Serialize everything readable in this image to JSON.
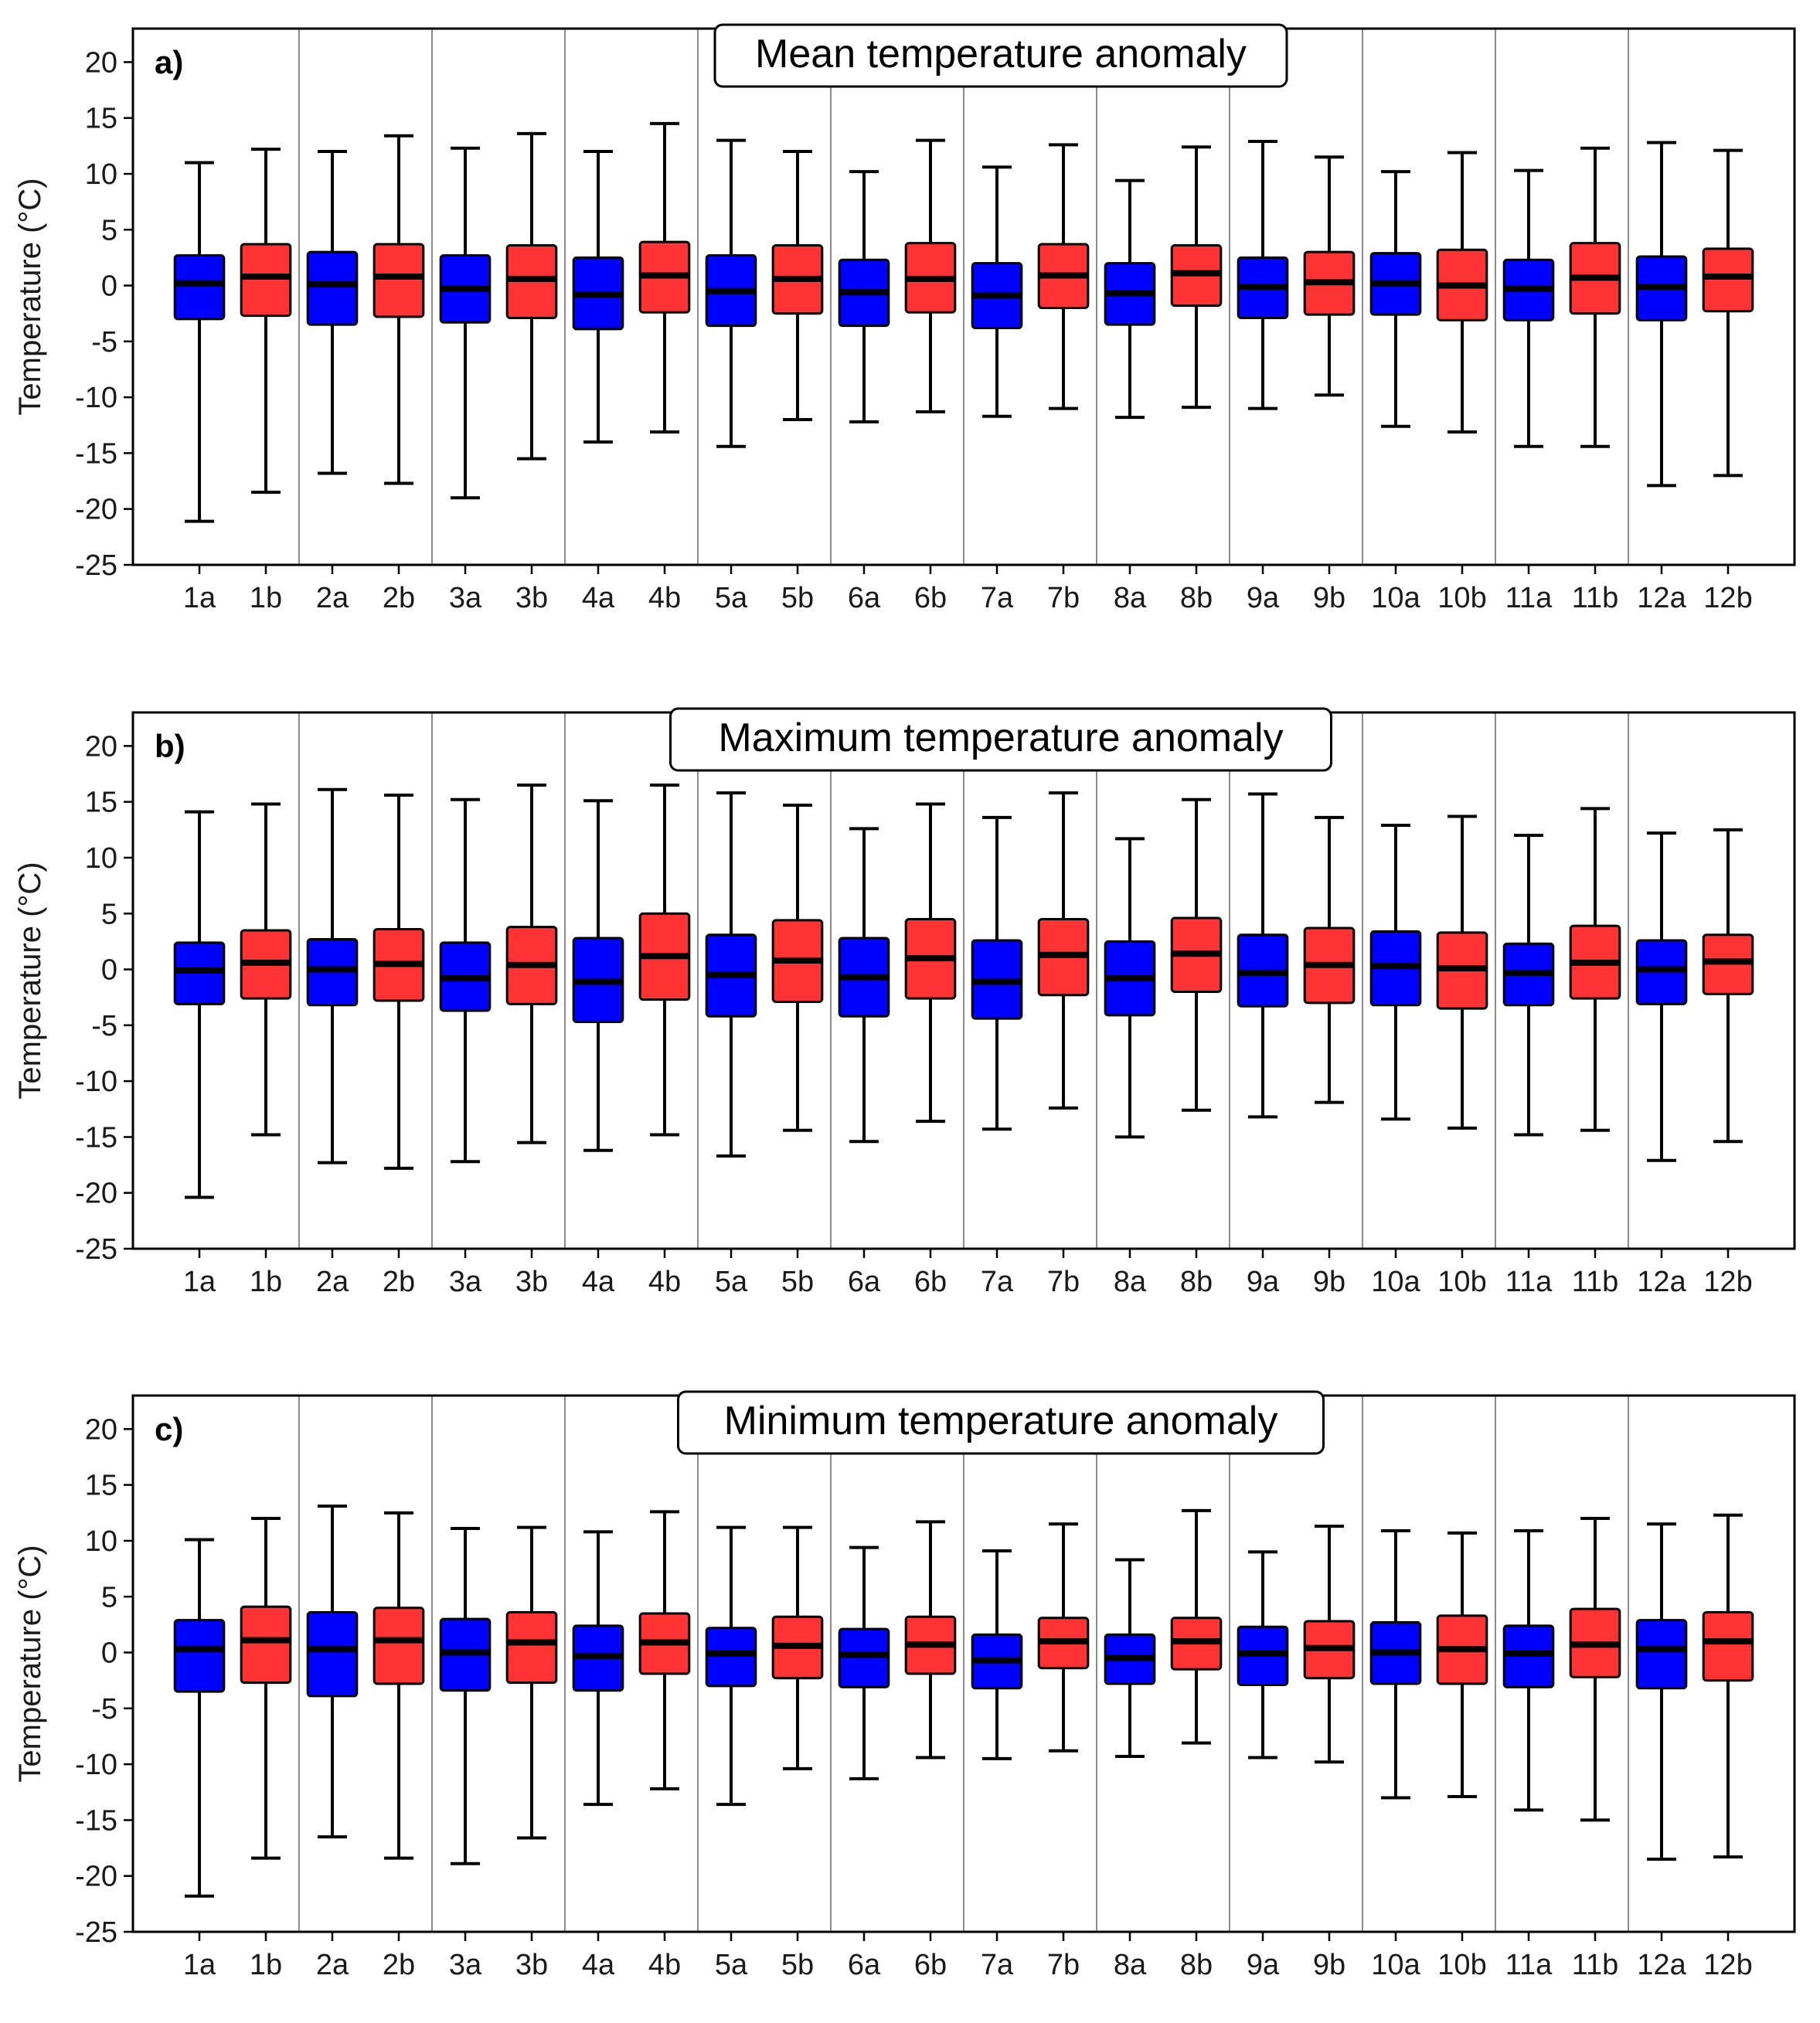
{
  "figure": {
    "y_label": "Temperature (°C)",
    "colors": {
      "a": "#0000ff",
      "b": "#ff3333",
      "stroke": "#000000",
      "separator": "#8c8c8c"
    }
  },
  "chart_data": [
    {
      "type": "boxplot",
      "panel_label": "a)",
      "title": "Mean temperature anomaly",
      "ylabel": "Temperature (°C)",
      "ylim": [
        -25,
        23
      ],
      "yticks": [
        20,
        15,
        10,
        5,
        0,
        -5,
        -10,
        -15,
        -20,
        -25
      ],
      "categories": [
        "1a",
        "1b",
        "2a",
        "2b",
        "3a",
        "3b",
        "4a",
        "4b",
        "5a",
        "5b",
        "6a",
        "6b",
        "7a",
        "7b",
        "8a",
        "8b",
        "9a",
        "9b",
        "10a",
        "10b",
        "11a",
        "11b",
        "12a",
        "12b"
      ],
      "boxes": [
        {
          "min": -21.1,
          "q1": -3.0,
          "median": 0.2,
          "q3": 2.7,
          "max": 11.0
        },
        {
          "min": -18.5,
          "q1": -2.7,
          "median": 0.8,
          "q3": 3.7,
          "max": 12.2
        },
        {
          "min": -16.8,
          "q1": -3.5,
          "median": 0.1,
          "q3": 3.0,
          "max": 12.0
        },
        {
          "min": -17.7,
          "q1": -2.8,
          "median": 0.8,
          "q3": 3.7,
          "max": 13.4
        },
        {
          "min": -19.0,
          "q1": -3.3,
          "median": -0.3,
          "q3": 2.7,
          "max": 12.3
        },
        {
          "min": -15.5,
          "q1": -2.9,
          "median": 0.6,
          "q3": 3.6,
          "max": 13.6
        },
        {
          "min": -14.0,
          "q1": -3.9,
          "median": -0.8,
          "q3": 2.5,
          "max": 12.0
        },
        {
          "min": -13.1,
          "q1": -2.4,
          "median": 0.9,
          "q3": 3.9,
          "max": 14.5
        },
        {
          "min": -14.4,
          "q1": -3.6,
          "median": -0.5,
          "q3": 2.7,
          "max": 13.0
        },
        {
          "min": -12.0,
          "q1": -2.5,
          "median": 0.6,
          "q3": 3.6,
          "max": 12.0
        },
        {
          "min": -12.2,
          "q1": -3.6,
          "median": -0.6,
          "q3": 2.3,
          "max": 10.2
        },
        {
          "min": -11.3,
          "q1": -2.4,
          "median": 0.6,
          "q3": 3.8,
          "max": 13.0
        },
        {
          "min": -11.7,
          "q1": -3.8,
          "median": -0.9,
          "q3": 2.0,
          "max": 10.6
        },
        {
          "min": -11.0,
          "q1": -2.0,
          "median": 0.9,
          "q3": 3.7,
          "max": 12.6
        },
        {
          "min": -11.8,
          "q1": -3.5,
          "median": -0.7,
          "q3": 2.0,
          "max": 9.4
        },
        {
          "min": -10.9,
          "q1": -1.8,
          "median": 1.1,
          "q3": 3.6,
          "max": 12.4
        },
        {
          "min": -11.0,
          "q1": -2.9,
          "median": -0.1,
          "q3": 2.5,
          "max": 12.9
        },
        {
          "min": -9.8,
          "q1": -2.6,
          "median": 0.3,
          "q3": 3.0,
          "max": 11.5
        },
        {
          "min": -12.6,
          "q1": -2.6,
          "median": 0.2,
          "q3": 2.9,
          "max": 10.2
        },
        {
          "min": -13.1,
          "q1": -3.1,
          "median": 0.0,
          "q3": 3.2,
          "max": 11.9
        },
        {
          "min": -14.4,
          "q1": -3.1,
          "median": -0.3,
          "q3": 2.3,
          "max": 10.3
        },
        {
          "min": -14.4,
          "q1": -2.5,
          "median": 0.7,
          "q3": 3.8,
          "max": 12.3
        },
        {
          "min": -17.9,
          "q1": -3.1,
          "median": -0.1,
          "q3": 2.6,
          "max": 12.8
        },
        {
          "min": -17.0,
          "q1": -2.3,
          "median": 0.8,
          "q3": 3.3,
          "max": 12.1
        }
      ]
    },
    {
      "type": "boxplot",
      "panel_label": "b)",
      "title": "Maximum temperature anomaly",
      "ylabel": "Temperature (°C)",
      "ylim": [
        -25,
        23
      ],
      "yticks": [
        20,
        15,
        10,
        5,
        0,
        -5,
        -10,
        -15,
        -20,
        -25
      ],
      "categories": [
        "1a",
        "1b",
        "2a",
        "2b",
        "3a",
        "3b",
        "4a",
        "4b",
        "5a",
        "5b",
        "6a",
        "6b",
        "7a",
        "7b",
        "8a",
        "8b",
        "9a",
        "9b",
        "10a",
        "10b",
        "11a",
        "11b",
        "12a",
        "12b"
      ],
      "boxes": [
        {
          "min": -20.4,
          "q1": -3.1,
          "median": -0.1,
          "q3": 2.4,
          "max": 14.1
        },
        {
          "min": -14.8,
          "q1": -2.6,
          "median": 0.6,
          "q3": 3.5,
          "max": 14.8
        },
        {
          "min": -17.3,
          "q1": -3.2,
          "median": 0.0,
          "q3": 2.7,
          "max": 16.1
        },
        {
          "min": -17.8,
          "q1": -2.8,
          "median": 0.5,
          "q3": 3.6,
          "max": 15.6
        },
        {
          "min": -17.2,
          "q1": -3.7,
          "median": -0.8,
          "q3": 2.4,
          "max": 15.2
        },
        {
          "min": -15.5,
          "q1": -3.1,
          "median": 0.4,
          "q3": 3.8,
          "max": 16.5
        },
        {
          "min": -16.2,
          "q1": -4.7,
          "median": -1.1,
          "q3": 2.8,
          "max": 15.1
        },
        {
          "min": -14.8,
          "q1": -2.7,
          "median": 1.2,
          "q3": 5.0,
          "max": 16.5
        },
        {
          "min": -16.7,
          "q1": -4.2,
          "median": -0.5,
          "q3": 3.1,
          "max": 15.8
        },
        {
          "min": -14.4,
          "q1": -2.9,
          "median": 0.8,
          "q3": 4.4,
          "max": 14.7
        },
        {
          "min": -15.4,
          "q1": -4.2,
          "median": -0.7,
          "q3": 2.8,
          "max": 12.6
        },
        {
          "min": -13.6,
          "q1": -2.6,
          "median": 1.0,
          "q3": 4.5,
          "max": 14.8
        },
        {
          "min": -14.3,
          "q1": -4.4,
          "median": -1.1,
          "q3": 2.6,
          "max": 13.6
        },
        {
          "min": -12.4,
          "q1": -2.3,
          "median": 1.3,
          "q3": 4.5,
          "max": 15.8
        },
        {
          "min": -15.0,
          "q1": -4.1,
          "median": -0.8,
          "q3": 2.5,
          "max": 11.7
        },
        {
          "min": -12.6,
          "q1": -2.0,
          "median": 1.4,
          "q3": 4.6,
          "max": 15.2
        },
        {
          "min": -13.2,
          "q1": -3.3,
          "median": -0.3,
          "q3": 3.1,
          "max": 15.7
        },
        {
          "min": -11.9,
          "q1": -3.0,
          "median": 0.4,
          "q3": 3.7,
          "max": 13.6
        },
        {
          "min": -13.4,
          "q1": -3.2,
          "median": 0.3,
          "q3": 3.4,
          "max": 12.9
        },
        {
          "min": -14.2,
          "q1": -3.5,
          "median": 0.1,
          "q3": 3.3,
          "max": 13.7
        },
        {
          "min": -14.8,
          "q1": -3.2,
          "median": -0.3,
          "q3": 2.3,
          "max": 12.0
        },
        {
          "min": -14.4,
          "q1": -2.6,
          "median": 0.6,
          "q3": 3.9,
          "max": 14.4
        },
        {
          "min": -17.1,
          "q1": -3.1,
          "median": 0.0,
          "q3": 2.6,
          "max": 12.2
        },
        {
          "min": -15.4,
          "q1": -2.2,
          "median": 0.7,
          "q3": 3.1,
          "max": 12.5
        }
      ]
    },
    {
      "type": "boxplot",
      "panel_label": "c)",
      "title": "Minimum temperature anomaly",
      "ylabel": "Temperature (°C)",
      "ylim": [
        -25,
        23
      ],
      "yticks": [
        20,
        15,
        10,
        5,
        0,
        -5,
        -10,
        -15,
        -20,
        -25
      ],
      "categories": [
        "1a",
        "1b",
        "2a",
        "2b",
        "3a",
        "3b",
        "4a",
        "4b",
        "5a",
        "5b",
        "6a",
        "6b",
        "7a",
        "7b",
        "8a",
        "8b",
        "9a",
        "9b",
        "10a",
        "10b",
        "11a",
        "11b",
        "12a",
        "12b"
      ],
      "boxes": [
        {
          "min": -21.8,
          "q1": -3.5,
          "median": 0.3,
          "q3": 2.9,
          "max": 10.1
        },
        {
          "min": -18.4,
          "q1": -2.7,
          "median": 1.1,
          "q3": 4.1,
          "max": 12.0
        },
        {
          "min": -16.5,
          "q1": -3.9,
          "median": 0.3,
          "q3": 3.6,
          "max": 13.1
        },
        {
          "min": -18.4,
          "q1": -2.8,
          "median": 1.1,
          "q3": 4.0,
          "max": 12.5
        },
        {
          "min": -18.9,
          "q1": -3.4,
          "median": 0.0,
          "q3": 3.0,
          "max": 11.1
        },
        {
          "min": -16.6,
          "q1": -2.7,
          "median": 0.9,
          "q3": 3.6,
          "max": 11.2
        },
        {
          "min": -13.6,
          "q1": -3.4,
          "median": -0.3,
          "q3": 2.4,
          "max": 10.8
        },
        {
          "min": -12.2,
          "q1": -1.9,
          "median": 0.9,
          "q3": 3.5,
          "max": 12.6
        },
        {
          "min": -13.6,
          "q1": -3.0,
          "median": -0.1,
          "q3": 2.2,
          "max": 11.2
        },
        {
          "min": -10.4,
          "q1": -2.3,
          "median": 0.6,
          "q3": 3.2,
          "max": 11.2
        },
        {
          "min": -11.3,
          "q1": -3.1,
          "median": -0.2,
          "q3": 2.1,
          "max": 9.4
        },
        {
          "min": -9.4,
          "q1": -1.9,
          "median": 0.7,
          "q3": 3.2,
          "max": 11.7
        },
        {
          "min": -9.5,
          "q1": -3.2,
          "median": -0.7,
          "q3": 1.6,
          "max": 9.1
        },
        {
          "min": -8.8,
          "q1": -1.4,
          "median": 1.0,
          "q3": 3.1,
          "max": 11.5
        },
        {
          "min": -9.3,
          "q1": -2.8,
          "median": -0.5,
          "q3": 1.6,
          "max": 8.3
        },
        {
          "min": -8.1,
          "q1": -1.5,
          "median": 1.0,
          "q3": 3.1,
          "max": 12.7
        },
        {
          "min": -9.4,
          "q1": -2.9,
          "median": -0.1,
          "q3": 2.3,
          "max": 9.0
        },
        {
          "min": -9.8,
          "q1": -2.3,
          "median": 0.4,
          "q3": 2.8,
          "max": 11.3
        },
        {
          "min": -13.0,
          "q1": -2.8,
          "median": 0.0,
          "q3": 2.7,
          "max": 10.9
        },
        {
          "min": -12.9,
          "q1": -2.8,
          "median": 0.3,
          "q3": 3.3,
          "max": 10.7
        },
        {
          "min": -14.1,
          "q1": -3.1,
          "median": -0.1,
          "q3": 2.4,
          "max": 10.9
        },
        {
          "min": -15.0,
          "q1": -2.2,
          "median": 0.7,
          "q3": 3.9,
          "max": 12.0
        },
        {
          "min": -18.5,
          "q1": -3.2,
          "median": 0.3,
          "q3": 2.9,
          "max": 11.5
        },
        {
          "min": -18.3,
          "q1": -2.5,
          "median": 1.0,
          "q3": 3.6,
          "max": 12.3
        }
      ]
    }
  ]
}
